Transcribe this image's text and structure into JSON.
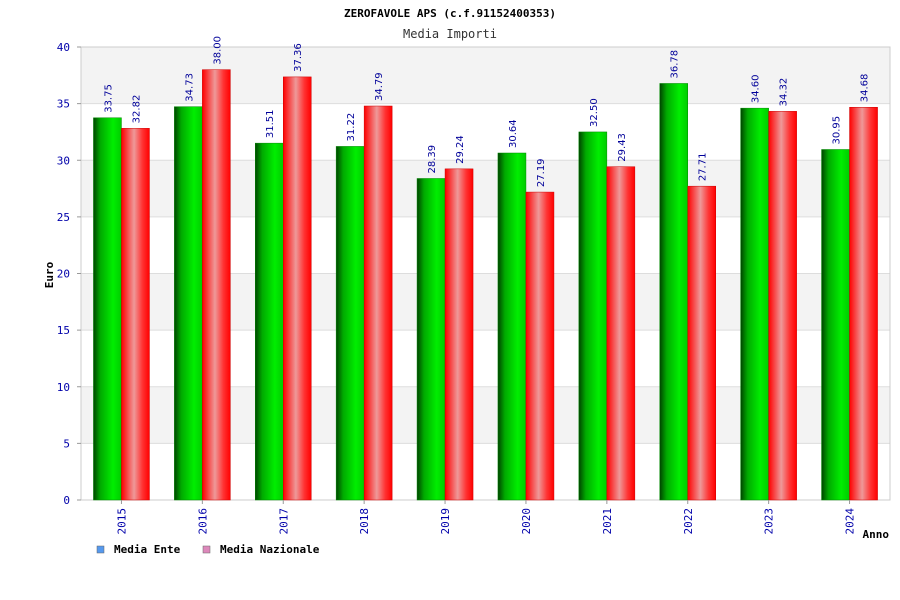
{
  "chart_data": {
    "type": "bar",
    "title": "ZEROFAVOLE APS (c.f.91152400353)",
    "subtitle": "Media Importi",
    "xlabel": "Anno",
    "ylabel": "Euro",
    "ylim": [
      0,
      40
    ],
    "yticks": [
      0,
      5,
      10,
      15,
      20,
      25,
      30,
      35,
      40
    ],
    "grid": true,
    "legend_position": "bottom-left",
    "categories": [
      "2015",
      "2016",
      "2017",
      "2018",
      "2019",
      "2020",
      "2021",
      "2022",
      "2023",
      "2024"
    ],
    "series": [
      {
        "name": "Media Ente",
        "color": "#00cc00",
        "legend_color": "#5599ee",
        "values": [
          33.75,
          34.73,
          31.51,
          31.22,
          28.39,
          30.64,
          32.5,
          36.78,
          34.6,
          30.95
        ],
        "labels": [
          "33.75",
          "34.73",
          "31.51",
          "31.22",
          "28.39",
          "30.64",
          "32.50",
          "36.78",
          "34.60",
          "30.95"
        ]
      },
      {
        "name": "Media Nazionale",
        "color": "#ff0000",
        "legend_color": "#dd88bb",
        "values": [
          32.82,
          38.0,
          37.36,
          34.79,
          29.24,
          27.19,
          29.43,
          27.71,
          34.32,
          34.68
        ],
        "labels": [
          "32.82",
          "38.00",
          "37.36",
          "34.79",
          "29.24",
          "27.19",
          "29.43",
          "27.71",
          "34.32",
          "34.68"
        ]
      }
    ]
  }
}
